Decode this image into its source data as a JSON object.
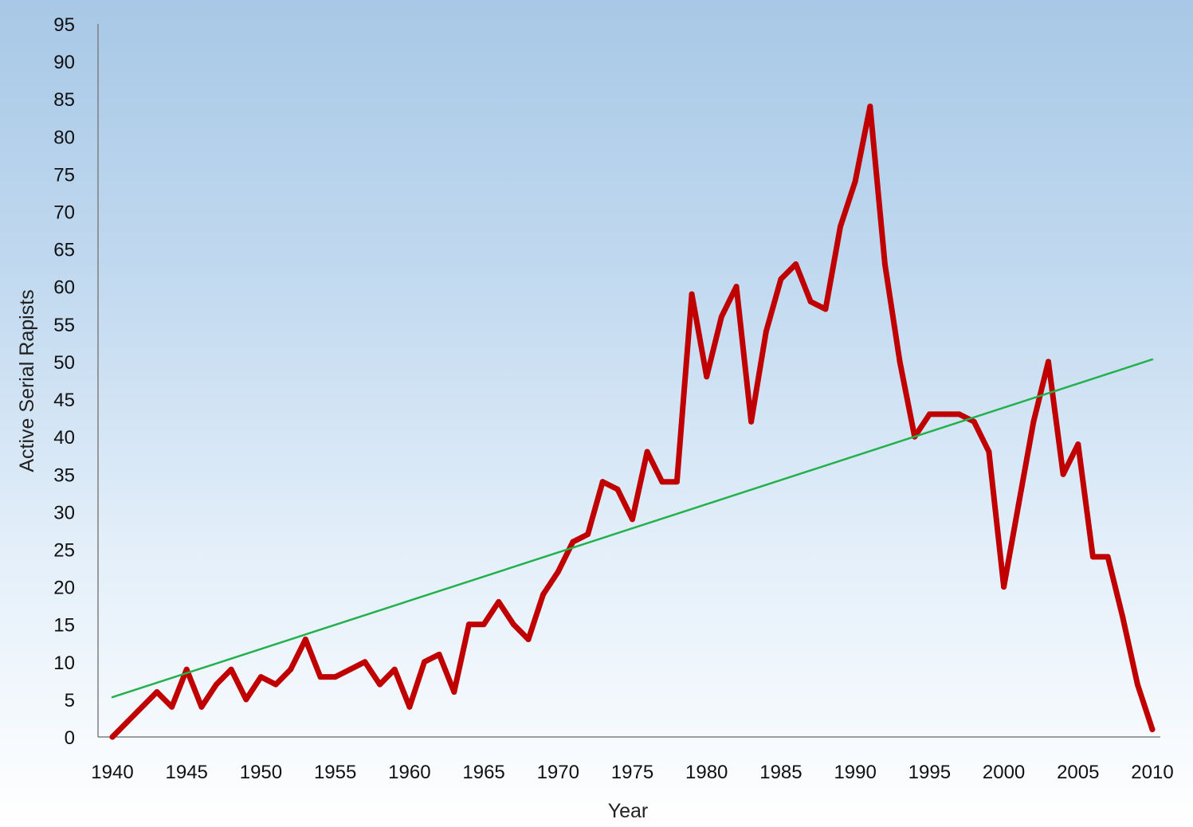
{
  "chart_data": {
    "type": "line",
    "xlabel": "Year",
    "ylabel": "Active Serial Rapists",
    "xlim": [
      1940,
      2010
    ],
    "ylim": [
      0,
      95
    ],
    "x_ticks": [
      1940,
      1945,
      1950,
      1955,
      1960,
      1965,
      1970,
      1975,
      1980,
      1985,
      1990,
      1995,
      2000,
      2005,
      2010
    ],
    "y_ticks": [
      0,
      5,
      10,
      15,
      20,
      25,
      30,
      35,
      40,
      45,
      50,
      55,
      60,
      65,
      70,
      75,
      80,
      85,
      90,
      95
    ],
    "grid": false,
    "legend": "none",
    "series": [
      {
        "color": "#c00000",
        "x": [
          1940,
          1941,
          1942,
          1943,
          1944,
          1945,
          1946,
          1947,
          1948,
          1949,
          1950,
          1951,
          1952,
          1953,
          1954,
          1955,
          1956,
          1957,
          1958,
          1959,
          1960,
          1961,
          1962,
          1963,
          1964,
          1965,
          1966,
          1967,
          1968,
          1969,
          1970,
          1971,
          1972,
          1973,
          1974,
          1975,
          1976,
          1977,
          1978,
          1979,
          1980,
          1981,
          1982,
          1983,
          1984,
          1985,
          1986,
          1987,
          1988,
          1989,
          1990,
          1991,
          1992,
          1993,
          1994,
          1995,
          1996,
          1997,
          1998,
          1999,
          2000,
          2001,
          2002,
          2003,
          2004,
          2005,
          2006,
          2007,
          2008,
          2009,
          2010
        ],
        "values": [
          0,
          2,
          4,
          6,
          4,
          9,
          4,
          7,
          9,
          5,
          8,
          7,
          9,
          13,
          8,
          8,
          9,
          10,
          7,
          9,
          4,
          10,
          11,
          6,
          15,
          15,
          18,
          15,
          13,
          19,
          22,
          26,
          27,
          34,
          33,
          29,
          38,
          34,
          34,
          59,
          48,
          56,
          60,
          42,
          54,
          61,
          63,
          58,
          57,
          68,
          74,
          84,
          63,
          50,
          40,
          43,
          43,
          43,
          42,
          38,
          20,
          31,
          42,
          50,
          35,
          39,
          24,
          24,
          16,
          7,
          1
        ]
      },
      {
        "color": "#22b14c",
        "type": "trendline",
        "x": [
          1940,
          2010
        ],
        "values": [
          5.3,
          50.3
        ]
      }
    ]
  }
}
